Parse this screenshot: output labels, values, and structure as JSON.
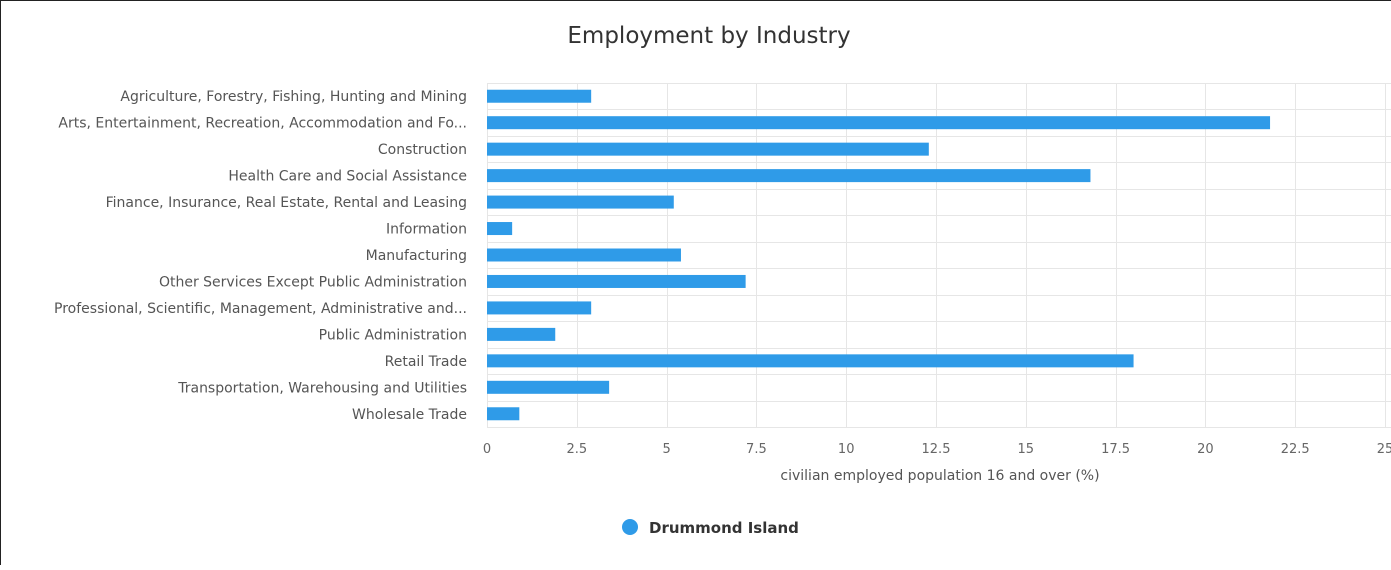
{
  "chart_data": {
    "type": "bar",
    "orientation": "horizontal",
    "title": "Employment by Industry",
    "xlabel": "civilian employed population 16 and over (%)",
    "ylabel": "",
    "xlim": [
      0,
      25
    ],
    "ticks": [
      "0",
      "2.5",
      "5",
      "7.5",
      "10",
      "12.5",
      "15",
      "17.5",
      "20",
      "22.5",
      "25"
    ],
    "tick_values": [
      0,
      2.5,
      5,
      7.5,
      10,
      12.5,
      15,
      17.5,
      20,
      22.5,
      25
    ],
    "grid": true,
    "legend_position": "bottom-center",
    "categories": [
      "Agriculture, Forestry, Fishing, Hunting and Mining",
      "Arts, Entertainment, Recreation, Accommodation and Fo...",
      "Construction",
      "Health Care and Social Assistance",
      "Finance, Insurance, Real Estate, Rental and Leasing",
      "Information",
      "Manufacturing",
      "Other Services Except Public Administration",
      "Professional, Scientific, Management, Administrative and...",
      "Public Administration",
      "Retail Trade",
      "Transportation, Warehousing and Utilities",
      "Wholesale Trade"
    ],
    "series": [
      {
        "name": "Drummond Island",
        "color": "#2f9be8",
        "values": [
          2.9,
          21.8,
          12.3,
          16.8,
          5.2,
          0.7,
          5.4,
          7.2,
          2.9,
          1.9,
          18.0,
          3.4,
          0.9
        ]
      }
    ]
  }
}
